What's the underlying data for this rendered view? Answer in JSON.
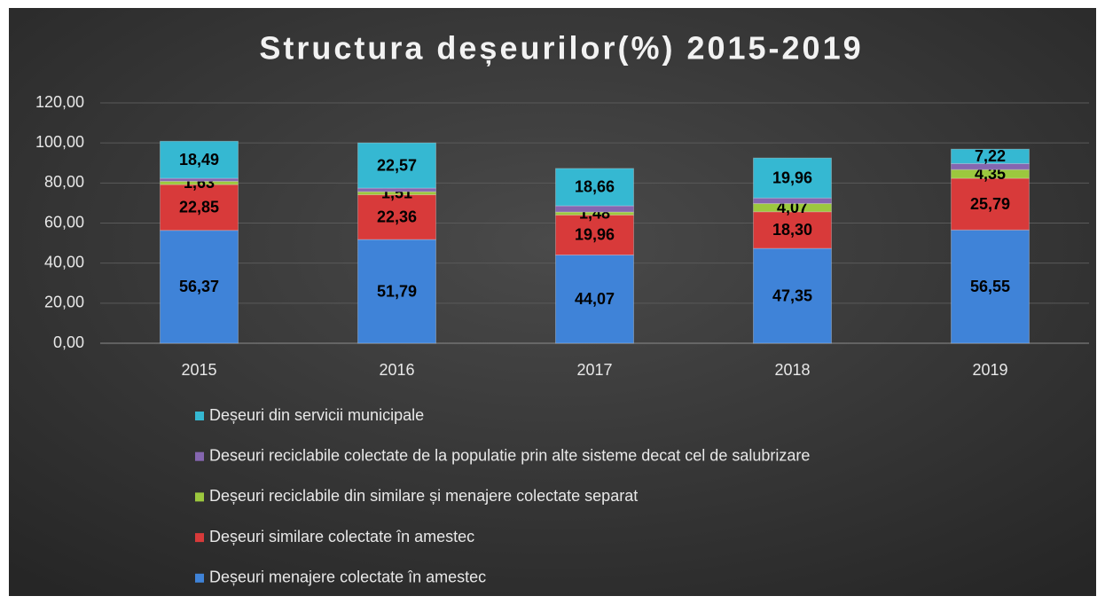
{
  "chart_data": {
    "type": "bar",
    "stacked": true,
    "title": "Structura deșeurilor(%) 2015-2019",
    "categories": [
      "2015",
      "2016",
      "2017",
      "2018",
      "2019"
    ],
    "series": [
      {
        "name": "Deșeuri menajere colectate în amestec",
        "color": "#3f83d8",
        "values": [
          56.37,
          51.79,
          44.07,
          47.35,
          56.55
        ],
        "value_labels": [
          "56,37",
          "51,79",
          "44,07",
          "47,35",
          "56,55"
        ]
      },
      {
        "name": "Deșeuri similare colectate în amestec",
        "color": "#d83a3a",
        "values": [
          22.85,
          22.36,
          19.96,
          18.3,
          25.79
        ],
        "value_labels": [
          "22,85",
          "22,36",
          "19,96",
          "18,30",
          "25,79"
        ]
      },
      {
        "name": "Deșeuri reciclabile din similare și menajere colectate separat",
        "color": "#9cc83e",
        "values": [
          1.63,
          1.51,
          1.48,
          4.07,
          4.35
        ],
        "value_labels": [
          "1,63",
          "1,51",
          "1,48",
          "4,07",
          "4,35"
        ]
      },
      {
        "name": "Deseuri reciclabile colectate de la populatie prin alte sisteme decat cel de salubrizare",
        "color": "#8566b0",
        "values": [
          1.5,
          1.8,
          3.1,
          2.8,
          3.0
        ],
        "value_labels": [
          null,
          null,
          null,
          null,
          null
        ]
      },
      {
        "name": "Deșeuri din servicii municipale",
        "color": "#35b8d2",
        "values": [
          18.49,
          22.57,
          18.66,
          19.96,
          7.22
        ],
        "value_labels": [
          "18,49",
          "22,57",
          "18,66",
          "19,96",
          "7,22"
        ]
      }
    ],
    "ylim": [
      0,
      120
    ],
    "yticks": [
      {
        "value": 0,
        "label": "0,00"
      },
      {
        "value": 20,
        "label": "20,00"
      },
      {
        "value": 40,
        "label": "40,00"
      },
      {
        "value": 60,
        "label": "60,00"
      },
      {
        "value": 80,
        "label": "80,00"
      },
      {
        "value": 100,
        "label": "100,00"
      },
      {
        "value": 120,
        "label": "120,00"
      }
    ],
    "grid": true,
    "legend": "bottom"
  }
}
